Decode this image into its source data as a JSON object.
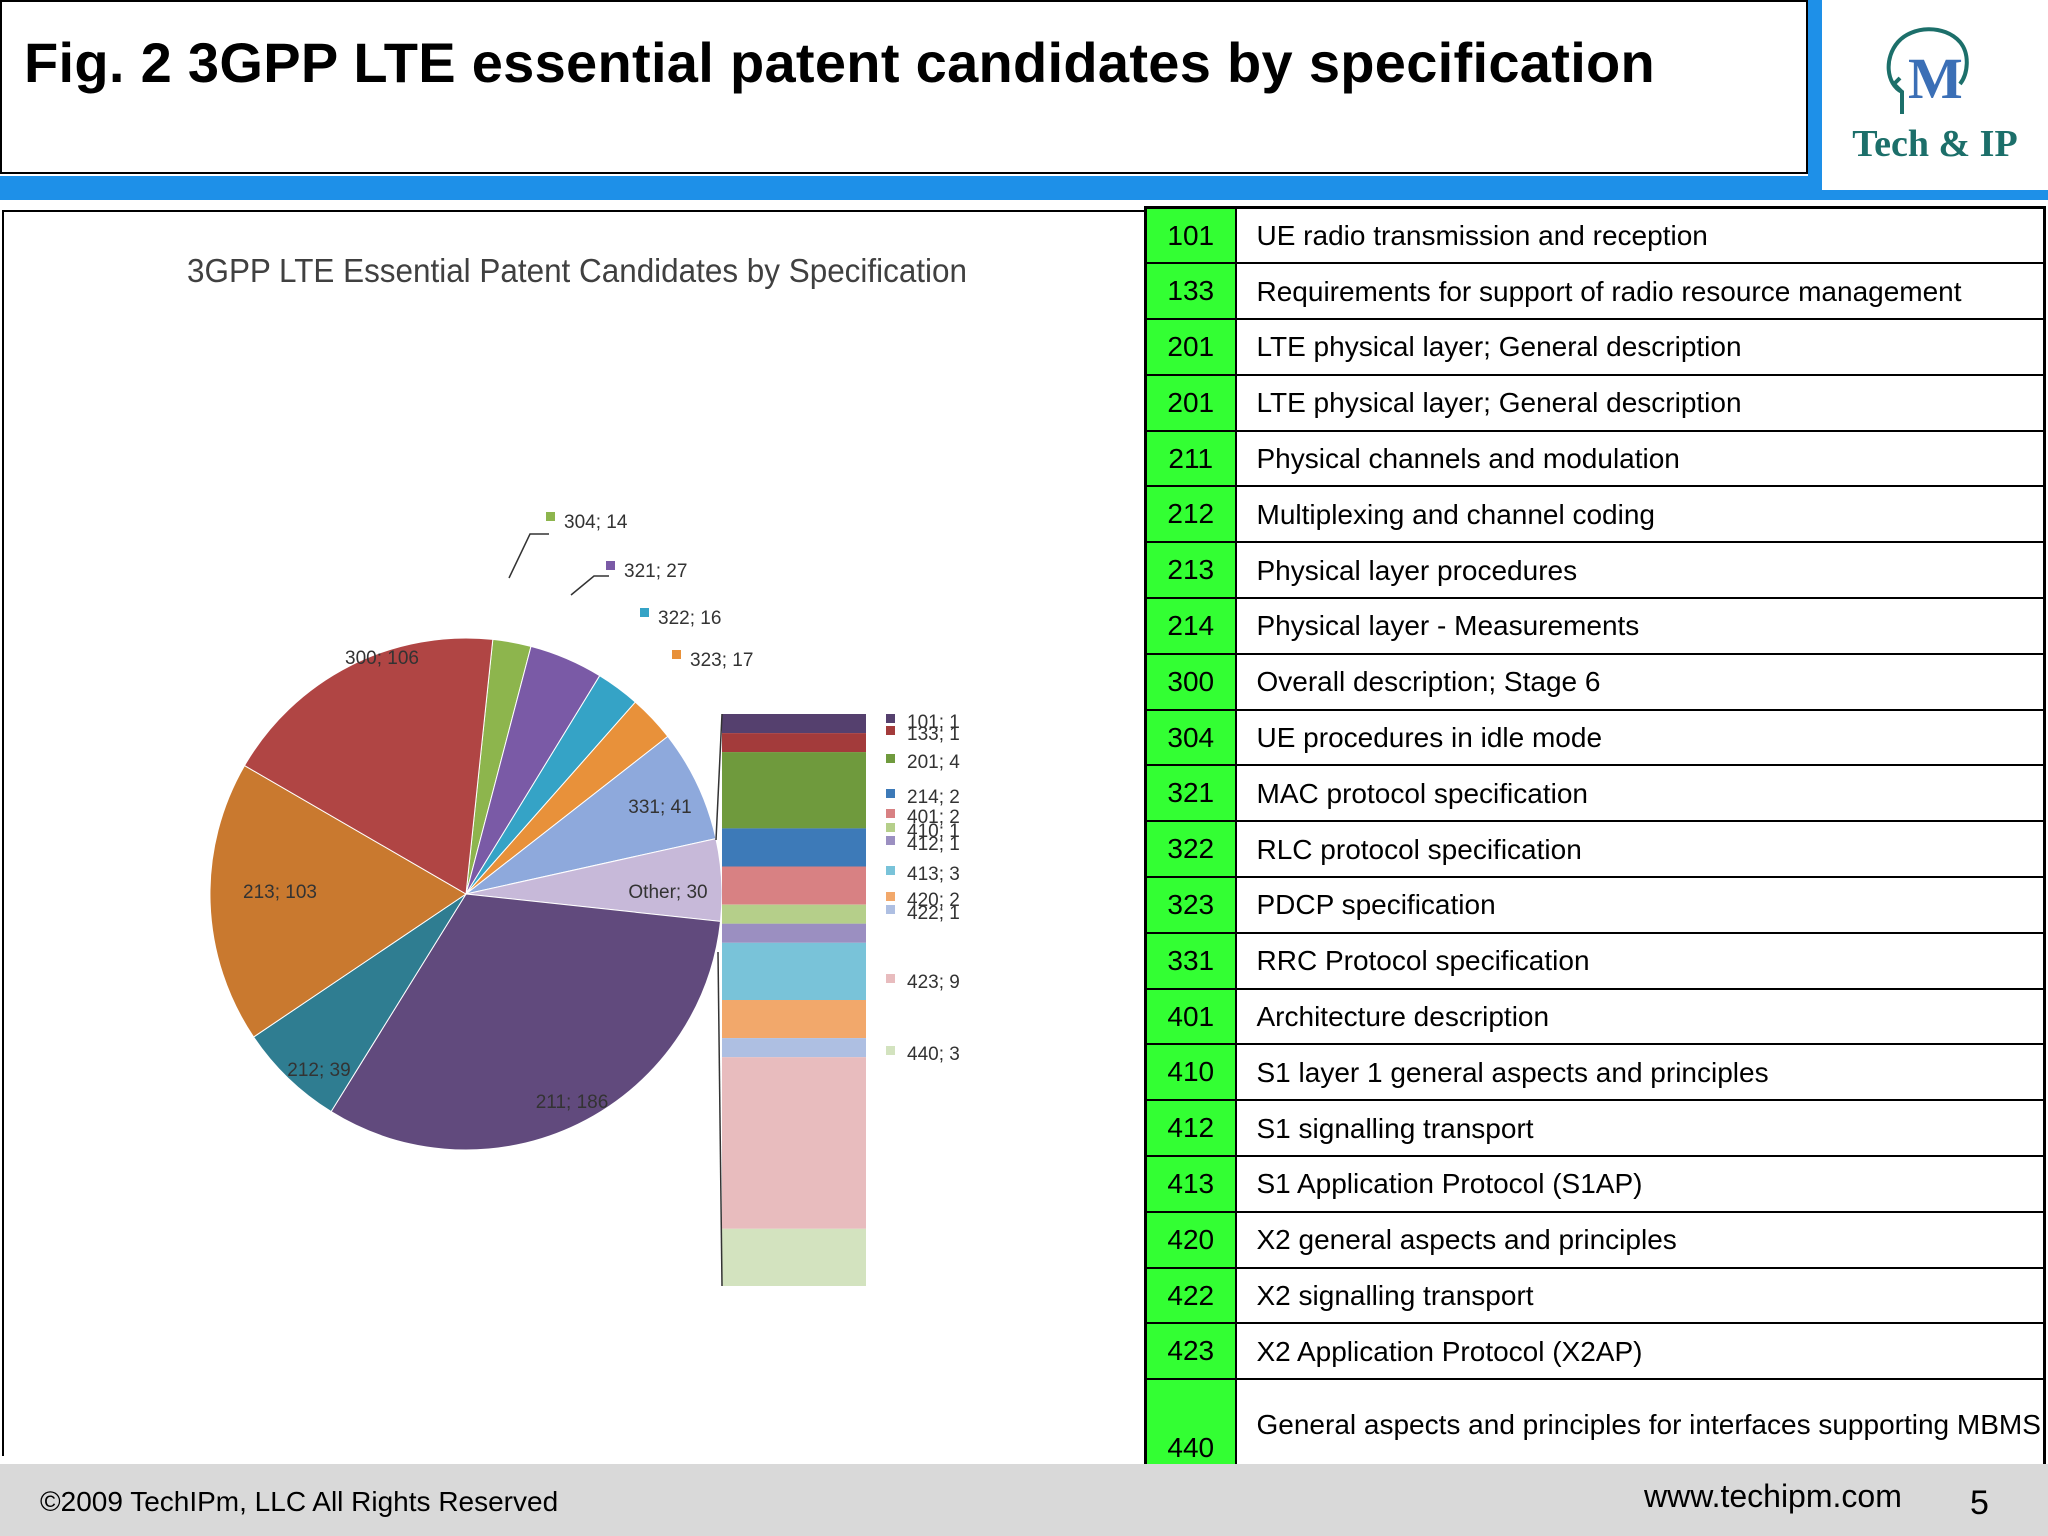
{
  "slide": {
    "title": "Fig. 2 3GPP LTE essential patent candidates by specification",
    "footer_copyright": "©2009 TechIPm, LLC All Rights Reserved",
    "footer_url": "www.techipm.com",
    "page_number": "5"
  },
  "logo": {
    "text": "Tech & IP"
  },
  "chart_data": {
    "type": "pie",
    "title": "3GPP LTE Essential Patent Candidates by Specification",
    "slices": [
      {
        "label": "304; 14",
        "value": 14,
        "color": "#8db54d"
      },
      {
        "label": "321; 27",
        "value": 27,
        "color": "#7a5aa6"
      },
      {
        "label": "322; 16",
        "value": 16,
        "color": "#35a3c6"
      },
      {
        "label": "323; 17",
        "value": 17,
        "color": "#e8913a"
      },
      {
        "label": "331; 41",
        "value": 41,
        "color": "#8ea9dc"
      },
      {
        "label": "Other; 30",
        "value": 30,
        "color": "#c7b9d9"
      },
      {
        "label": "211; 186",
        "value": 186,
        "color": "#614a7d"
      },
      {
        "label": "212; 39",
        "value": 39,
        "color": "#2f7d91"
      },
      {
        "label": "213; 103",
        "value": 103,
        "color": "#c9792f"
      },
      {
        "label": "300; 106",
        "value": 106,
        "color": "#b04544"
      }
    ],
    "other_breakdown": [
      {
        "label": "101; 1",
        "value": 1,
        "color": "#55406e"
      },
      {
        "label": "133; 1",
        "value": 1,
        "color": "#a33b3b"
      },
      {
        "label": "201; 4",
        "value": 4,
        "color": "#6f9a3d"
      },
      {
        "label": "214; 2",
        "value": 2,
        "color": "#3d7ab8"
      },
      {
        "label": "401; 2",
        "value": 2,
        "color": "#d88183"
      },
      {
        "label": "410; 1",
        "value": 1,
        "color": "#b5cf8a"
      },
      {
        "label": "412; 1",
        "value": 1,
        "color": "#9b8fc1"
      },
      {
        "label": "413; 3",
        "value": 3,
        "color": "#79c3d9"
      },
      {
        "label": "420; 2",
        "value": 2,
        "color": "#f2a86b"
      },
      {
        "label": "422; 1",
        "value": 1,
        "color": "#aebfe2"
      },
      {
        "label": "423; 9",
        "value": 9,
        "color": "#e8bcbe"
      },
      {
        "label": "440; 3",
        "value": 3,
        "color": "#d3e3bf"
      }
    ]
  },
  "spec_table": [
    {
      "code": "101",
      "desc": "UE radio transmission and reception"
    },
    {
      "code": "133",
      "desc": "Requirements for support of radio resource management"
    },
    {
      "code": "201",
      "desc": "LTE physical layer; General description"
    },
    {
      "code": "201",
      "desc": "LTE physical layer; General description"
    },
    {
      "code": "211",
      "desc": "Physical channels and modulation"
    },
    {
      "code": "212",
      "desc": "Multiplexing and channel coding"
    },
    {
      "code": "213",
      "desc": "Physical layer procedures"
    },
    {
      "code": "214",
      "desc": "Physical layer - Measurements"
    },
    {
      "code": "300",
      "desc": "Overall description; Stage 6"
    },
    {
      "code": "304",
      "desc": "UE procedures in idle mode"
    },
    {
      "code": "321",
      "desc": "MAC protocol specification"
    },
    {
      "code": "322",
      "desc": "RLC protocol specification"
    },
    {
      "code": "323",
      "desc": "PDCP specification"
    },
    {
      "code": "331",
      "desc": "RRC Protocol specification"
    },
    {
      "code": "401",
      "desc": "Architecture description"
    },
    {
      "code": "410",
      "desc": "S1 layer 1 general aspects and principles"
    },
    {
      "code": "412",
      "desc": "S1 signalling transport"
    },
    {
      "code": "413",
      "desc": "S1 Application Protocol (S1AP)"
    },
    {
      "code": "420",
      "desc": "X2 general aspects and principles"
    },
    {
      "code": "422",
      "desc": "X2 signalling transport"
    },
    {
      "code": "423",
      "desc": "X2 Application Protocol (X2AP)"
    },
    {
      "code": "440",
      "desc": "General aspects and principles for interfaces supporting MBMS"
    }
  ]
}
